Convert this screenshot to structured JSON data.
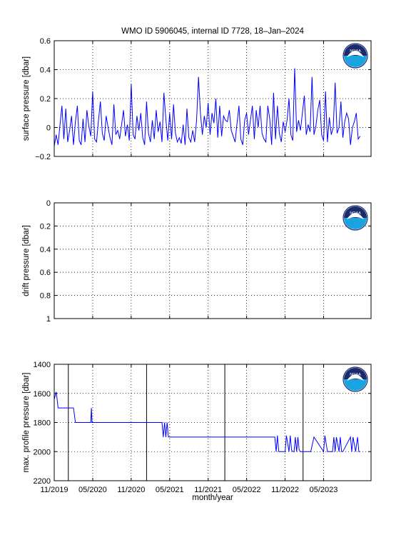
{
  "title": "WMO ID 5906045, internal ID 7728, 18–Jan–2024",
  "x_axis": {
    "label": "month/year",
    "ticks": [
      "11/2019",
      "05/2020",
      "11/2020",
      "05/2021",
      "11/2021",
      "05/2022",
      "11/2022",
      "05/2023"
    ],
    "range": [
      "2019-11",
      "2023-12"
    ]
  },
  "logo": {
    "name": "noaa-logo",
    "text": "NOAA"
  },
  "line_color": "#0000ff",
  "chart_data": [
    {
      "type": "line",
      "ylabel": "surface pressure [dbar]",
      "ylim": [
        -0.2,
        0.6
      ],
      "y_ticks": [
        "−0.2",
        "0",
        "0.2",
        "0.4",
        "0.6"
      ],
      "grid": true,
      "x_unit": "months since 11/2019",
      "series": [
        {
          "values_mode": "dense",
          "x": [
            0.0,
            0.3,
            0.6,
            0.9,
            1.2,
            1.5,
            1.8,
            2.1,
            2.4,
            2.7,
            3.0,
            3.3,
            3.6,
            3.9,
            4.2,
            4.5,
            4.8,
            5.1,
            5.4,
            5.7,
            6.0,
            6.3,
            6.6,
            6.9,
            7.2,
            7.5,
            7.8,
            8.1,
            8.4,
            8.7,
            9.0,
            9.3,
            9.6,
            9.9,
            10.2,
            10.5,
            10.8,
            11.1,
            11.4,
            11.7,
            12.0,
            12.3,
            12.6,
            12.9,
            13.2,
            13.5,
            13.8,
            14.1,
            14.4,
            14.7,
            15.0,
            15.3,
            15.6,
            15.9,
            16.2,
            16.5,
            16.8,
            17.1,
            17.4,
            17.7,
            18.0,
            18.3,
            18.6,
            18.9,
            19.2,
            19.5,
            19.8,
            20.1,
            20.4,
            20.7,
            21.0,
            21.3,
            21.6,
            21.9,
            22.2,
            22.5,
            22.8,
            23.1,
            23.4,
            23.7,
            24.0,
            24.3,
            24.6,
            24.9,
            25.2,
            25.5,
            25.8,
            26.1,
            26.4,
            26.7,
            27.0,
            27.3,
            27.6,
            27.9,
            28.2,
            28.5,
            28.8,
            29.1,
            29.4,
            29.7,
            30.0,
            30.3,
            30.6,
            30.9,
            31.2,
            31.5,
            31.8,
            32.1,
            32.4,
            32.7,
            33.0,
            33.3,
            33.6,
            33.9,
            34.2,
            34.5,
            34.8,
            35.1,
            35.4,
            35.7,
            36.0,
            36.3,
            36.6,
            36.9,
            37.2,
            37.5,
            37.8,
            38.1,
            38.4,
            38.7,
            39.0,
            39.3,
            39.6,
            39.9,
            40.2,
            40.5,
            40.8,
            41.1,
            41.4,
            41.7,
            42.0,
            42.3,
            42.6,
            42.9,
            43.2,
            43.5,
            43.8,
            44.1,
            44.4,
            44.7,
            45.0,
            45.3,
            45.6,
            45.9,
            46.2,
            46.5,
            46.8,
            47.1,
            47.4,
            47.7
          ],
          "values": [
            -0.13,
            -0.05,
            -0.12,
            0.02,
            0.15,
            -0.08,
            0.13,
            -0.1,
            -0.02,
            0.08,
            -0.12,
            0.04,
            0.15,
            -0.09,
            -0.12,
            0.06,
            -0.1,
            0.12,
            0.01,
            -0.06,
            0.25,
            -0.08,
            -0.1,
            0.05,
            0.18,
            -0.04,
            -0.09,
            0.08,
            0.0,
            -0.07,
            -0.12,
            0.16,
            -0.05,
            -0.02,
            -0.08,
            0.02,
            0.12,
            -0.06,
            0.02,
            -0.09,
            0.3,
            -0.05,
            -0.08,
            0.08,
            -0.02,
            0.1,
            -0.07,
            -0.12,
            0.18,
            -0.04,
            -0.1,
            0.05,
            -0.08,
            0.12,
            -0.03,
            0.04,
            -0.1,
            0.24,
            0.06,
            -0.09,
            0.1,
            -0.08,
            0.16,
            -0.04,
            -0.1,
            -0.07,
            -0.11,
            0.02,
            -0.12,
            0.13,
            -0.07,
            -0.1,
            -0.02,
            -0.1,
            0.05,
            0.35,
            0.1,
            -0.05,
            0.08,
            0.0,
            0.17,
            -0.05,
            0.1,
            0.03,
            0.2,
            -0.07,
            0.15,
            -0.06,
            0.08,
            0.05,
            0.04,
            0.12,
            -0.02,
            -0.06,
            -0.1,
            0.03,
            0.15,
            -0.08,
            -0.12,
            0.05,
            0.1,
            -0.05,
            0.05,
            0.15,
            -0.08,
            0.12,
            0.0,
            0.15,
            -0.04,
            -0.08,
            -0.1,
            0.15,
            0.06,
            -0.12,
            0.24,
            -0.08,
            0.15,
            -0.04,
            -0.1,
            0.04,
            -0.03,
            0.05,
            0.2,
            -0.05,
            -0.09,
            0.41,
            -0.03,
            0.05,
            -0.02,
            0.1,
            0.22,
            -0.05,
            0.02,
            -0.03,
            0.35,
            -0.05,
            0.01,
            0.12,
            0.19,
            -0.05,
            -0.09,
            0.25,
            -0.1,
            0.07,
            -0.05,
            0.0,
            0.31,
            -0.04,
            0.0,
            0.18,
            -0.07,
            0.04,
            0.1,
            0.06,
            -0.12,
            0.0,
            0.04,
            0.1,
            -0.08,
            -0.06
          ]
        }
      ]
    },
    {
      "type": "line",
      "ylabel": "drift pressure [dbar]",
      "ylim": [
        1,
        0
      ],
      "y_reversed": true,
      "y_ticks": [
        "0",
        "0.2",
        "0.4",
        "0.6",
        "0.8",
        "1"
      ],
      "grid": true,
      "series": []
    },
    {
      "type": "line",
      "ylabel": "max. profile pressure [dbar]",
      "ylim": [
        2200,
        1400
      ],
      "y_reversed": true,
      "y_ticks": [
        "1400",
        "1600",
        "1800",
        "2000",
        "2200"
      ],
      "grid": true,
      "vertical_lines_months": [
        2.2,
        14.4,
        26.6,
        38.8
      ],
      "series": [
        {
          "x": [
            0.0,
            0.3,
            0.4,
            0.6,
            3.0,
            3.3,
            5.7,
            5.8,
            5.9,
            6.0,
            6.1,
            16.8,
            17.0,
            17.2,
            17.4,
            17.6,
            17.8,
            19.0,
            34.4,
            34.6,
            34.8,
            35.0,
            36.0,
            36.2,
            36.6,
            36.8,
            37.0,
            37.2,
            37.4,
            37.6,
            37.8,
            38.0,
            38.2,
            38.4,
            38.6,
            39.0,
            39.4,
            40.0,
            40.5,
            42.0,
            42.2,
            42.6,
            43.4,
            43.6,
            43.8,
            44.0,
            44.4,
            44.6,
            44.8,
            45.0,
            46.2,
            46.4,
            46.6,
            47.0,
            47.3,
            47.5,
            47.7
          ],
          "values": [
            1640,
            1590,
            1620,
            1700,
            1700,
            1800,
            1800,
            1700,
            1800,
            1800,
            1800,
            1800,
            1900,
            1800,
            1900,
            1800,
            1900,
            1900,
            1900,
            2000,
            1890,
            2000,
            2000,
            1890,
            2000,
            1890,
            1990,
            2000,
            2000,
            1900,
            2000,
            1900,
            1990,
            2000,
            2000,
            2000,
            2000,
            2000,
            1900,
            2000,
            1890,
            2000,
            2000,
            1900,
            2000,
            1900,
            2000,
            1900,
            2000,
            2000,
            1900,
            2000,
            1900,
            2000,
            1900,
            2000,
            2000
          ]
        }
      ]
    }
  ]
}
